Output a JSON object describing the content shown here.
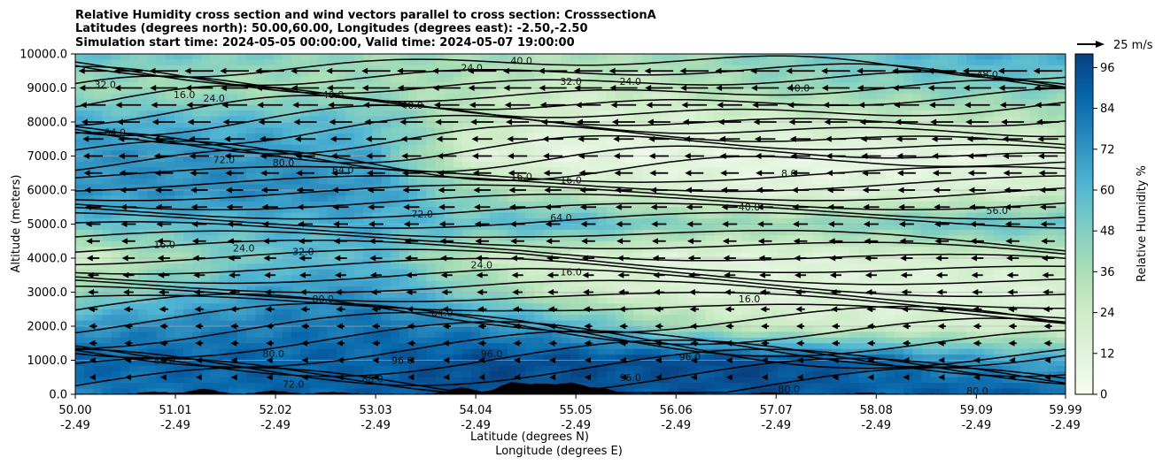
{
  "chart_data": {
    "type": "heatmap",
    "title_lines": [
      "Relative Humidity cross section and wind vectors parallel to cross section: CrosssectionA",
      "Latitudes (degrees north): 50.00,60.00, Longitudes (degrees east): -2.50,-2.50",
      "Simulation start time: 2024-05-05 00:00:00, Valid time: 2024-05-07 19:00:00"
    ],
    "xlabel_lines": [
      "Latitude (degrees N)",
      "Longitude (degrees E)"
    ],
    "ylabel": "Altitude (meters)",
    "x_ticks": [
      {
        "lat": "50.00",
        "lon": "-2.49"
      },
      {
        "lat": "51.01",
        "lon": "-2.49"
      },
      {
        "lat": "52.02",
        "lon": "-2.49"
      },
      {
        "lat": "53.03",
        "lon": "-2.49"
      },
      {
        "lat": "54.04",
        "lon": "-2.49"
      },
      {
        "lat": "55.05",
        "lon": "-2.49"
      },
      {
        "lat": "56.06",
        "lon": "-2.49"
      },
      {
        "lat": "57.07",
        "lon": "-2.49"
      },
      {
        "lat": "58.08",
        "lon": "-2.49"
      },
      {
        "lat": "59.09",
        "lon": "-2.49"
      },
      {
        "lat": "59.99",
        "lon": "-2.49"
      }
    ],
    "x_range": [
      50.0,
      59.99
    ],
    "y_ticks": [
      "0.0",
      "1000.0",
      "2000.0",
      "3000.0",
      "4000.0",
      "5000.0",
      "6000.0",
      "7000.0",
      "8000.0",
      "9000.0",
      "10000.0"
    ],
    "y_range": [
      0,
      10000
    ],
    "grid": "horizontal",
    "colorbar": {
      "label": "Relative Humidity %",
      "ticks": [
        "0",
        "12",
        "24",
        "36",
        "48",
        "60",
        "72",
        "84",
        "96"
      ],
      "range": [
        0,
        100
      ],
      "colormap": "GnBu"
    },
    "quiver_key": {
      "label": "25 m/s",
      "speed": 25
    },
    "rh_profiles": [
      {
        "lat": 50.0,
        "values": [
          [
            0,
            80
          ],
          [
            1000,
            88
          ],
          [
            2000,
            72
          ],
          [
            3000,
            40
          ],
          [
            4000,
            20
          ],
          [
            5000,
            56
          ],
          [
            6000,
            72
          ],
          [
            7000,
            72
          ],
          [
            8000,
            64
          ],
          [
            9000,
            40
          ],
          [
            10000,
            56
          ]
        ]
      },
      {
        "lat": 52.0,
        "values": [
          [
            0,
            88
          ],
          [
            1000,
            88
          ],
          [
            2000,
            80
          ],
          [
            3000,
            70
          ],
          [
            4000,
            56
          ],
          [
            5000,
            60
          ],
          [
            6000,
            76
          ],
          [
            7000,
            72
          ],
          [
            8000,
            60
          ],
          [
            9000,
            36
          ],
          [
            10000,
            48
          ]
        ]
      },
      {
        "lat": 53.0,
        "values": [
          [
            0,
            90
          ],
          [
            1000,
            88
          ],
          [
            2000,
            84
          ],
          [
            3000,
            72
          ],
          [
            4000,
            60
          ],
          [
            5000,
            64
          ],
          [
            6000,
            72
          ],
          [
            7000,
            64
          ],
          [
            8000,
            56
          ],
          [
            9000,
            40
          ],
          [
            10000,
            40
          ]
        ]
      },
      {
        "lat": 54.0,
        "values": [
          [
            0,
            96
          ],
          [
            1000,
            96
          ],
          [
            2000,
            76
          ],
          [
            3000,
            48
          ],
          [
            4000,
            28
          ],
          [
            5000,
            56
          ],
          [
            6000,
            40
          ],
          [
            7000,
            16
          ],
          [
            8000,
            28
          ],
          [
            9000,
            32
          ],
          [
            10000,
            40
          ]
        ]
      },
      {
        "lat": 55.0,
        "values": [
          [
            0,
            92
          ],
          [
            1000,
            96
          ],
          [
            2000,
            64
          ],
          [
            3000,
            24
          ],
          [
            4000,
            16
          ],
          [
            5000,
            64
          ],
          [
            6000,
            24
          ],
          [
            7000,
            8
          ],
          [
            8000,
            16
          ],
          [
            9000,
            24
          ],
          [
            10000,
            36
          ]
        ]
      },
      {
        "lat": 56.0,
        "values": [
          [
            0,
            92
          ],
          [
            1000,
            96
          ],
          [
            2000,
            40
          ],
          [
            3000,
            16
          ],
          [
            4000,
            12
          ],
          [
            5000,
            48
          ],
          [
            6000,
            16
          ],
          [
            7000,
            8
          ],
          [
            8000,
            16
          ],
          [
            9000,
            28
          ],
          [
            10000,
            40
          ]
        ]
      },
      {
        "lat": 57.0,
        "values": [
          [
            0,
            96
          ],
          [
            1000,
            96
          ],
          [
            2000,
            24
          ],
          [
            3000,
            12
          ],
          [
            4000,
            12
          ],
          [
            5000,
            40
          ],
          [
            6000,
            12
          ],
          [
            7000,
            8
          ],
          [
            8000,
            20
          ],
          [
            9000,
            40
          ],
          [
            10000,
            48
          ]
        ]
      },
      {
        "lat": 58.0,
        "values": [
          [
            0,
            88
          ],
          [
            1000,
            88
          ],
          [
            2000,
            20
          ],
          [
            3000,
            12
          ],
          [
            4000,
            16
          ],
          [
            5000,
            48
          ],
          [
            6000,
            12
          ],
          [
            7000,
            8
          ],
          [
            8000,
            24
          ],
          [
            9000,
            44
          ],
          [
            10000,
            56
          ]
        ]
      },
      {
        "lat": 59.0,
        "values": [
          [
            0,
            92
          ],
          [
            1000,
            72
          ],
          [
            2000,
            20
          ],
          [
            3000,
            12
          ],
          [
            4000,
            20
          ],
          [
            5000,
            56
          ],
          [
            6000,
            16
          ],
          [
            7000,
            8
          ],
          [
            8000,
            28
          ],
          [
            9000,
            48
          ],
          [
            10000,
            64
          ]
        ]
      },
      {
        "lat": 59.99,
        "values": [
          [
            0,
            88
          ],
          [
            1000,
            64
          ],
          [
            2000,
            20
          ],
          [
            3000,
            16
          ],
          [
            4000,
            24
          ],
          [
            5000,
            56
          ],
          [
            6000,
            20
          ],
          [
            7000,
            16
          ],
          [
            8000,
            32
          ],
          [
            9000,
            48
          ],
          [
            10000,
            64
          ]
        ]
      }
    ],
    "contour_labels": [
      {
        "text": "32.0",
        "lat": 50.3,
        "alt": 9100
      },
      {
        "text": "16.0",
        "lat": 51.1,
        "alt": 8800
      },
      {
        "text": "24.0",
        "lat": 51.4,
        "alt": 8700
      },
      {
        "text": "40.0",
        "lat": 52.6,
        "alt": 8800
      },
      {
        "text": "40.0",
        "lat": 53.4,
        "alt": 8500
      },
      {
        "text": "24.0",
        "lat": 54.0,
        "alt": 9600
      },
      {
        "text": "40.0",
        "lat": 54.5,
        "alt": 9800
      },
      {
        "text": "32.0",
        "lat": 55.0,
        "alt": 9200
      },
      {
        "text": "24.0",
        "lat": 55.6,
        "alt": 9200
      },
      {
        "text": "48.0",
        "lat": 59.2,
        "alt": 9400
      },
      {
        "text": "40.0",
        "lat": 57.3,
        "alt": 9000
      },
      {
        "text": "64.0",
        "lat": 50.4,
        "alt": 7700
      },
      {
        "text": "72.0",
        "lat": 51.5,
        "alt": 6900
      },
      {
        "text": "80.0",
        "lat": 52.1,
        "alt": 6800
      },
      {
        "text": "64.0",
        "lat": 52.7,
        "alt": 6600
      },
      {
        "text": "16.0",
        "lat": 54.5,
        "alt": 6400
      },
      {
        "text": "16.0",
        "lat": 55.0,
        "alt": 6300
      },
      {
        "text": "8.0",
        "lat": 57.2,
        "alt": 6500
      },
      {
        "text": "40.0",
        "lat": 56.8,
        "alt": 5500
      },
      {
        "text": "56.0",
        "lat": 59.3,
        "alt": 5400
      },
      {
        "text": "64.0",
        "lat": 54.9,
        "alt": 5200
      },
      {
        "text": "72.0",
        "lat": 53.5,
        "alt": 5300
      },
      {
        "text": "16.0",
        "lat": 50.9,
        "alt": 4400
      },
      {
        "text": "24.0",
        "lat": 51.7,
        "alt": 4300
      },
      {
        "text": "32.0",
        "lat": 52.3,
        "alt": 4200
      },
      {
        "text": "24.0",
        "lat": 54.1,
        "alt": 3800
      },
      {
        "text": "16.0",
        "lat": 55.0,
        "alt": 3600
      },
      {
        "text": "16.0",
        "lat": 56.8,
        "alt": 2800
      },
      {
        "text": "64.0",
        "lat": 53.7,
        "alt": 2400
      },
      {
        "text": "80.0",
        "lat": 52.5,
        "alt": 2800
      },
      {
        "text": "88.0",
        "lat": 50.9,
        "alt": 1000
      },
      {
        "text": "96.0",
        "lat": 53.3,
        "alt": 1000
      },
      {
        "text": "96.0",
        "lat": 54.2,
        "alt": 1200
      },
      {
        "text": "96.0",
        "lat": 56.2,
        "alt": 1100
      },
      {
        "text": "96.0",
        "lat": 55.6,
        "alt": 500
      },
      {
        "text": "88.0",
        "lat": 53.0,
        "alt": 450
      },
      {
        "text": "72.0",
        "lat": 52.2,
        "alt": 300
      },
      {
        "text": "80.0",
        "lat": 52.0,
        "alt": 1200
      },
      {
        "text": "80.0",
        "lat": 59.1,
        "alt": 100
      },
      {
        "text": "80.0",
        "lat": 57.2,
        "alt": 150
      }
    ],
    "wind_rows": [
      {
        "alt": 9500,
        "speed": 22
      },
      {
        "alt": 9000,
        "speed": 21
      },
      {
        "alt": 8500,
        "speed": 19
      },
      {
        "alt": 8000,
        "speed": 17
      },
      {
        "alt": 7500,
        "speed": 15
      },
      {
        "alt": 7000,
        "speed": 14
      },
      {
        "alt": 6500,
        "speed": 13
      },
      {
        "alt": 6000,
        "speed": 12
      },
      {
        "alt": 5500,
        "speed": 11
      },
      {
        "alt": 5000,
        "speed": 10
      },
      {
        "alt": 4500,
        "speed": 9
      },
      {
        "alt": 4000,
        "speed": 8
      },
      {
        "alt": 3500,
        "speed": 7
      },
      {
        "alt": 3000,
        "speed": 6
      },
      {
        "alt": 2500,
        "speed": 5
      },
      {
        "alt": 2000,
        "speed": 4
      },
      {
        "alt": 1500,
        "speed": 4
      },
      {
        "alt": 1000,
        "speed": 3
      },
      {
        "alt": 500,
        "speed": 3
      }
    ]
  }
}
